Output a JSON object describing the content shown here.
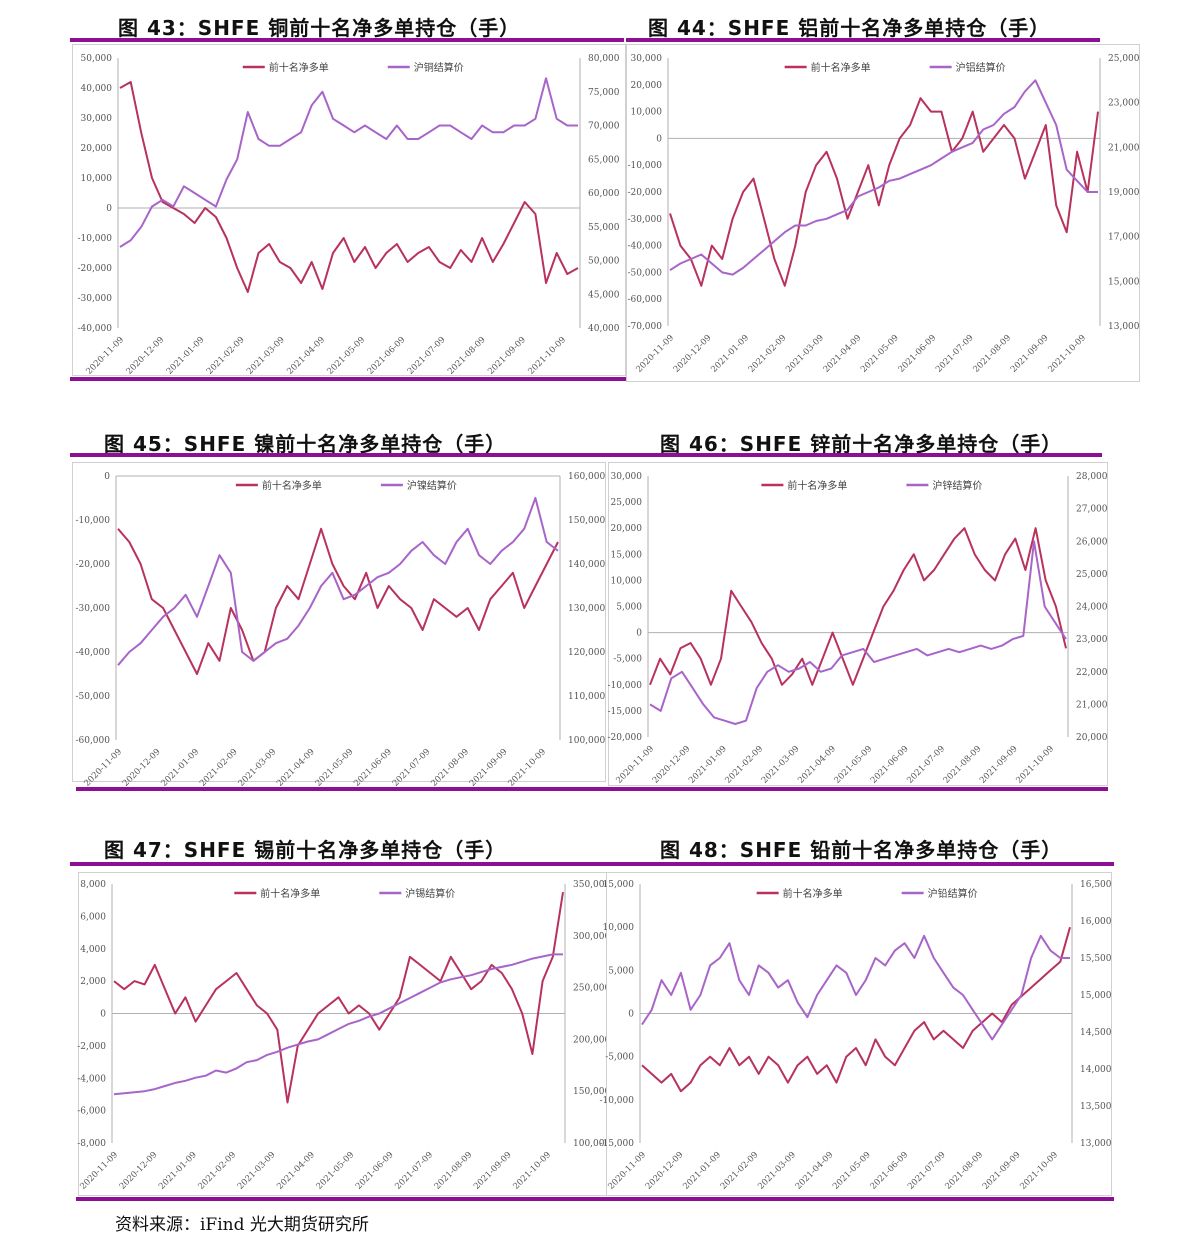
{
  "colors": {
    "net_long": "#b8325c",
    "price": "#a865c9",
    "rule": "#8d0f93"
  },
  "source": "资料来源：iFind 光大期货研究所",
  "x_ticks": [
    "2020-11-09",
    "2020-12-09",
    "2021-01-09",
    "2021-02-09",
    "2021-03-09",
    "2021-04-09",
    "2021-05-09",
    "2021-06-09",
    "2021-07-09",
    "2021-08-09",
    "2021-09-09",
    "2021-10-09"
  ],
  "chart_data": [
    {
      "type": "line",
      "title": "图 43：SHFE 铜前十名净多单持仓（手）",
      "series": [
        {
          "name": "前十名净多单",
          "axis": "left",
          "values": [
            40000,
            42000,
            25000,
            10000,
            2000,
            0,
            -2000,
            -5000,
            0,
            -3000,
            -10000,
            -20000,
            -28000,
            -15000,
            -12000,
            -18000,
            -20000,
            -25000,
            -18000,
            -27000,
            -15000,
            -10000,
            -18000,
            -13000,
            -20000,
            -15000,
            -12000,
            -18000,
            -15000,
            -13000,
            -18000,
            -20000,
            -14000,
            -18000,
            -10000,
            -18000,
            -12000,
            -5000,
            2000,
            -2000,
            -25000,
            -15000,
            -22000,
            -20000
          ]
        },
        {
          "name": "沪铜结算价",
          "axis": "right",
          "values": [
            52000,
            53000,
            55000,
            58000,
            59000,
            58000,
            61000,
            60000,
            59000,
            58000,
            62000,
            65000,
            72000,
            68000,
            67000,
            67000,
            68000,
            69000,
            73000,
            75000,
            71000,
            70000,
            69000,
            70000,
            69000,
            68000,
            70000,
            68000,
            68000,
            69000,
            70000,
            70000,
            69000,
            68000,
            70000,
            69000,
            69000,
            70000,
            70000,
            71000,
            77000,
            71000,
            70000,
            70000
          ]
        }
      ],
      "left_ticks": [
        "50,000",
        "40,000",
        "30,000",
        "20,000",
        "10,000",
        "0",
        "-10,000",
        "-20,000",
        "-30,000",
        "-40,000"
      ],
      "right_ticks": [
        "80,000",
        "75,000",
        "70,000",
        "65,000",
        "60,000",
        "55,000",
        "50,000",
        "45,000",
        "40,000"
      ],
      "ylim_left": [
        -40000,
        50000
      ],
      "ylim_right": [
        40000,
        80000
      ]
    },
    {
      "type": "line",
      "title": "图 44：SHFE 铝前十名净多单持仓（手）",
      "series": [
        {
          "name": "前十名净多单",
          "axis": "left",
          "values": [
            -28000,
            -40000,
            -45000,
            -55000,
            -40000,
            -45000,
            -30000,
            -20000,
            -15000,
            -30000,
            -45000,
            -55000,
            -40000,
            -20000,
            -10000,
            -5000,
            -15000,
            -30000,
            -20000,
            -10000,
            -25000,
            -10000,
            0,
            5000,
            15000,
            10000,
            10000,
            -5000,
            0,
            10000,
            -5000,
            0,
            5000,
            0,
            -15000,
            -5000,
            5000,
            -25000,
            -35000,
            -5000,
            -20000,
            10000
          ]
        },
        {
          "name": "沪铝结算价",
          "axis": "right",
          "values": [
            15500,
            15800,
            16000,
            16200,
            15800,
            15400,
            15300,
            15600,
            16000,
            16400,
            16800,
            17200,
            17500,
            17500,
            17700,
            17800,
            18000,
            18200,
            18800,
            19000,
            19200,
            19500,
            19600,
            19800,
            20000,
            20200,
            20500,
            20800,
            21000,
            21200,
            21800,
            22000,
            22500,
            22800,
            23500,
            24000,
            23000,
            22000,
            20000,
            19500,
            19000,
            19000
          ]
        }
      ],
      "left_ticks": [
        "30,000",
        "20,000",
        "10,000",
        "0",
        "-10,000",
        "-20,000",
        "-30,000",
        "-40,000",
        "-50,000",
        "-60,000",
        "-70,000"
      ],
      "right_ticks": [
        "25,000",
        "23,000",
        "21,000",
        "19,000",
        "17,000",
        "15,000",
        "13,000"
      ],
      "ylim_left": [
        -70000,
        30000
      ],
      "ylim_right": [
        13000,
        25000
      ]
    },
    {
      "type": "line",
      "title": "图 45：SHFE 镍前十名净多单持仓（手）",
      "series": [
        {
          "name": "前十名净多单",
          "axis": "left",
          "values": [
            -12000,
            -15000,
            -20000,
            -28000,
            -30000,
            -35000,
            -40000,
            -45000,
            -38000,
            -42000,
            -30000,
            -35000,
            -42000,
            -40000,
            -30000,
            -25000,
            -28000,
            -20000,
            -12000,
            -20000,
            -25000,
            -28000,
            -22000,
            -30000,
            -25000,
            -28000,
            -30000,
            -35000,
            -28000,
            -30000,
            -32000,
            -30000,
            -35000,
            -28000,
            -25000,
            -22000,
            -30000,
            -25000,
            -20000,
            -15000
          ]
        },
        {
          "name": "沪镍结算价",
          "axis": "right",
          "values": [
            117000,
            120000,
            122000,
            125000,
            128000,
            130000,
            133000,
            128000,
            135000,
            142000,
            138000,
            120000,
            118000,
            120000,
            122000,
            123000,
            126000,
            130000,
            135000,
            138000,
            132000,
            133000,
            135000,
            137000,
            138000,
            140000,
            143000,
            145000,
            142000,
            140000,
            145000,
            148000,
            142000,
            140000,
            143000,
            145000,
            148000,
            155000,
            145000,
            143000
          ]
        }
      ],
      "left_ticks": [
        "0",
        "-10,000",
        "-20,000",
        "-30,000",
        "-40,000",
        "-50,000",
        "-60,000"
      ],
      "right_ticks": [
        "160,000",
        "150,000",
        "140,000",
        "130,000",
        "120,000",
        "110,000",
        "100,000"
      ],
      "ylim_left": [
        -60000,
        0
      ],
      "ylim_right": [
        100000,
        160000
      ]
    },
    {
      "type": "line",
      "title": "图 46：SHFE 锌前十名净多单持仓（手）",
      "series": [
        {
          "name": "前十名净多单",
          "axis": "left",
          "values": [
            -10000,
            -5000,
            -8000,
            -3000,
            -2000,
            -5000,
            -10000,
            -5000,
            8000,
            5000,
            2000,
            -2000,
            -5000,
            -10000,
            -8000,
            -5000,
            -10000,
            -5000,
            0,
            -5000,
            -10000,
            -5000,
            0,
            5000,
            8000,
            12000,
            15000,
            10000,
            12000,
            15000,
            18000,
            20000,
            15000,
            12000,
            10000,
            15000,
            18000,
            12000,
            20000,
            10000,
            5000,
            -3000
          ]
        },
        {
          "name": "沪锌结算价",
          "axis": "right",
          "values": [
            21000,
            20800,
            21800,
            22000,
            21500,
            21000,
            20600,
            20500,
            20400,
            20500,
            21500,
            22000,
            22200,
            22000,
            22100,
            22300,
            22000,
            22100,
            22500,
            22600,
            22700,
            22300,
            22400,
            22500,
            22600,
            22700,
            22500,
            22600,
            22700,
            22600,
            22700,
            22800,
            22700,
            22800,
            23000,
            23100,
            26000,
            24000,
            23500,
            23000
          ]
        }
      ],
      "left_ticks": [
        "30,000",
        "25,000",
        "20,000",
        "15,000",
        "10,000",
        "5,000",
        "0",
        "-5,000",
        "-10,000",
        "-15,000",
        "-20,000"
      ],
      "right_ticks": [
        "28,000",
        "27,000",
        "26,000",
        "25,000",
        "24,000",
        "23,000",
        "22,000",
        "21,000",
        "20,000"
      ],
      "ylim_left": [
        -20000,
        30000
      ],
      "ylim_right": [
        20000,
        28000
      ]
    },
    {
      "type": "line",
      "title": "图 47：SHFE 锡前十名净多单持仓（手）",
      "series": [
        {
          "name": "前十名净多单",
          "axis": "left",
          "values": [
            2000,
            1500,
            2000,
            1800,
            3000,
            1500,
            0,
            1000,
            -500,
            500,
            1500,
            2000,
            2500,
            1500,
            500,
            0,
            -1000,
            -5500,
            -2000,
            -1000,
            0,
            500,
            1000,
            0,
            500,
            0,
            -1000,
            0,
            1000,
            3500,
            3000,
            2500,
            2000,
            3500,
            2500,
            1500,
            2000,
            3000,
            2500,
            1500,
            0,
            -2500,
            2000,
            3500,
            7500
          ]
        },
        {
          "name": "沪锡结算价",
          "axis": "right",
          "values": [
            147000,
            148000,
            149000,
            150000,
            152000,
            155000,
            158000,
            160000,
            163000,
            165000,
            170000,
            168000,
            172000,
            178000,
            180000,
            185000,
            188000,
            192000,
            195000,
            198000,
            200000,
            205000,
            210000,
            215000,
            218000,
            222000,
            225000,
            230000,
            235000,
            240000,
            245000,
            250000,
            255000,
            258000,
            260000,
            262000,
            265000,
            268000,
            270000,
            272000,
            275000,
            278000,
            280000,
            282000,
            282000
          ]
        }
      ],
      "left_ticks": [
        "8,000",
        "6,000",
        "4,000",
        "2,000",
        "0",
        "-2,000",
        "-4,000",
        "-6,000",
        "-8,000"
      ],
      "right_ticks": [
        "350,000",
        "300,000",
        "250,000",
        "200,000",
        "150,000",
        "100,000"
      ],
      "ylim_left": [
        -8000,
        8000
      ],
      "ylim_right": [
        100000,
        350000
      ]
    },
    {
      "type": "line",
      "title": "图 48：SHFE 铅前十名净多单持仓（手）",
      "series": [
        {
          "name": "前十名净多单",
          "axis": "left",
          "values": [
            -6000,
            -7000,
            -8000,
            -7000,
            -9000,
            -8000,
            -6000,
            -5000,
            -6000,
            -4000,
            -6000,
            -5000,
            -7000,
            -5000,
            -6000,
            -8000,
            -6000,
            -5000,
            -7000,
            -6000,
            -8000,
            -5000,
            -4000,
            -6000,
            -3000,
            -5000,
            -6000,
            -4000,
            -2000,
            -1000,
            -3000,
            -2000,
            -3000,
            -4000,
            -2000,
            -1000,
            0,
            -1000,
            1000,
            2000,
            3000,
            4000,
            5000,
            6000,
            10000
          ]
        },
        {
          "name": "沪铅结算价",
          "axis": "right",
          "values": [
            14600,
            14800,
            15200,
            15000,
            15300,
            14800,
            15000,
            15400,
            15500,
            15700,
            15200,
            15000,
            15400,
            15300,
            15100,
            15200,
            14900,
            14700,
            15000,
            15200,
            15400,
            15300,
            15000,
            15200,
            15500,
            15400,
            15600,
            15700,
            15500,
            15800,
            15500,
            15300,
            15100,
            15000,
            14800,
            14600,
            14400,
            14600,
            14800,
            15000,
            15500,
            15800,
            15600,
            15500,
            15500
          ]
        }
      ],
      "left_ticks": [
        "15,000",
        "10,000",
        "5,000",
        "0",
        "-5,000",
        "-10,000",
        "-15,000"
      ],
      "right_ticks": [
        "16,500",
        "16,000",
        "15,500",
        "15,000",
        "14,500",
        "14,000",
        "13,500",
        "13,000"
      ],
      "ylim_left": [
        -15000,
        15000
      ],
      "ylim_right": [
        13000,
        16500
      ]
    }
  ]
}
